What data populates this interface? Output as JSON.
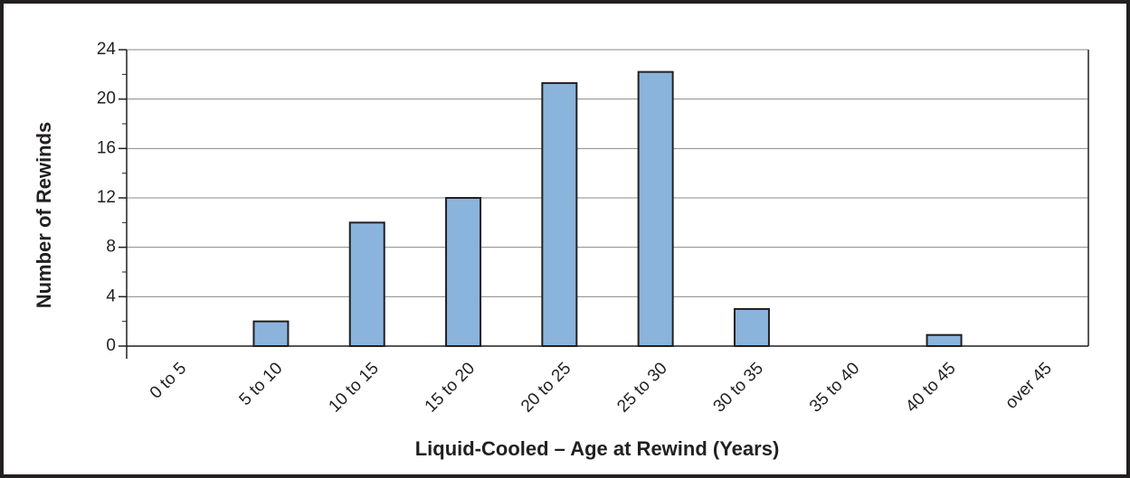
{
  "chart_data": {
    "type": "bar",
    "xlabel": "Liquid-Cooled – Age at Rewind (Years)",
    "ylabel": "Number of Rewinds",
    "categories": [
      "0 to 5",
      "5 to 10",
      "10 to 15",
      "15 to 20",
      "20 to 25",
      "25 to 30",
      "30 to 35",
      "35 to 40",
      "40 to 45",
      "over 45"
    ],
    "values": [
      0,
      2,
      10,
      12,
      21.3,
      22.2,
      3,
      0,
      0.9,
      0
    ],
    "color": "#8ab4dc",
    "ylim": [
      0,
      24
    ],
    "yticks": [
      0,
      4,
      8,
      12,
      16,
      20,
      24
    ],
    "grid": true
  }
}
